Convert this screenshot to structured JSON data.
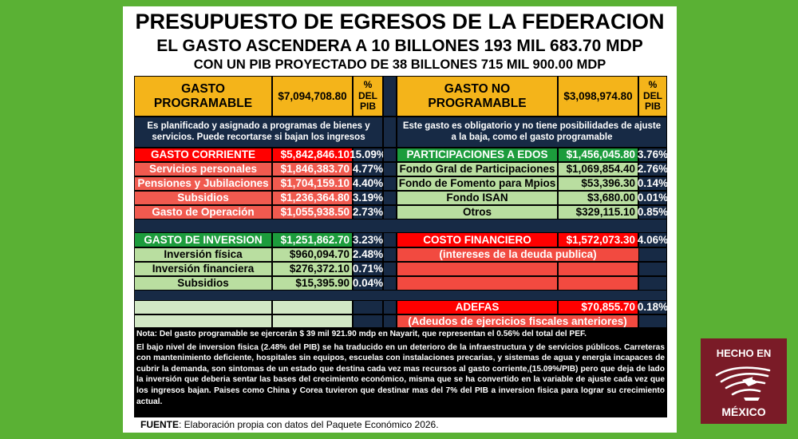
{
  "header": {
    "title": "PRESUPUESTO DE EGRESOS DE LA FEDERACION",
    "subtitle1": "EL GASTO ASCENDERA A 10 BILLONES 193 MIL 683.70 MDP",
    "subtitle2": "CON UN PIB PROYECTADO DE 38 BILLONES 715 MIL 900.00 MDP"
  },
  "left": {
    "header": {
      "label": "GASTO PROGRAMABLE",
      "amount": "$7,094,708.80",
      "pct": "% DEL PIB"
    },
    "description": "Es planificado y asignado a programas de bienes y servicios. Puede recortarse si bajan los ingresos",
    "corriente": {
      "label": "GASTO CORRIENTE",
      "amount": "$5,842,846.10",
      "pct": "15.09%"
    },
    "corriente_items": [
      {
        "label": "Servicios personales",
        "amount": "$1,846,383.70",
        "pct": "4.77%"
      },
      {
        "label": "Pensiones y Jubilaciones",
        "amount": "$1,704,159.10",
        "pct": "4.40%"
      },
      {
        "label": "Subsidios",
        "amount": "$1,236,364.80",
        "pct": "3.19%"
      },
      {
        "label": "Gasto de Operación",
        "amount": "$1,055,938.50",
        "pct": "2.73%"
      }
    ],
    "inversion": {
      "label": "GASTO DE INVERSION",
      "amount": "$1,251,862.70",
      "pct": "3.23%"
    },
    "inversion_items": [
      {
        "label": "Inversión física",
        "amount": "$960,094.70",
        "pct": "2.48%"
      },
      {
        "label": "Inversión financiera",
        "amount": "$276,372.10",
        "pct": "0.71%"
      },
      {
        "label": "Subsidios",
        "amount": "$15,395.90",
        "pct": "0.04%"
      }
    ]
  },
  "right": {
    "header": {
      "label": "GASTO NO PROGRAMABLE",
      "amount": "$3,098,974.80",
      "pct": "% DEL PIB"
    },
    "description": "Este gasto es obligatorio y no tiene posibilidades de ajuste a la baja, como el gasto programable",
    "participaciones": {
      "label": "PARTICIPACIONES A EDOS",
      "amount": "$1,456,045.80",
      "pct": "3.76%"
    },
    "participaciones_items": [
      {
        "label": "Fondo Gral de Participaciones",
        "amount": "$1,069,854.40",
        "pct": "2.76%"
      },
      {
        "label": "Fondo de Fomento para Mpios",
        "amount": "$53,396.30",
        "pct": "0.14%"
      },
      {
        "label": "Fondo ISAN",
        "amount": "$3,680.00",
        "pct": "0.01%"
      },
      {
        "label": "Otros",
        "amount": "$329,115.10",
        "pct": "0.85%"
      }
    ],
    "costo": {
      "label": "COSTO FINANCIERO",
      "amount": "$1,572,073.30",
      "pct": "4.06%"
    },
    "costo_note": "(intereses de la deuda publica)",
    "adefas": {
      "label": "ADEFAS",
      "amount": "$70,855.70",
      "pct": "0.18%"
    },
    "adefas_note": "(Adeudos de ejercicios fiscales anteriores)"
  },
  "notes": {
    "note1": "Nota: Del gasto programable se ejercerán $ 39 mil 921.90 mdp en Nayarit, que representan el 0.56% del total del PEF.",
    "note2": "El bajo nivel de inversion fisica (2.48% del PIB) se ha traducido en un deterioro de la infraestructura y de servicios públicos. Carreteras con mantenimiento deficiente, hospitales sin equipos, escuelas con instalaciones precarias, y sistemas de agua y energia incapaces de cubrir la demanda, son sintomas de un estado que destina cada vez mas recursos al gasto corriente,(15.09%/PIB) pero que deja de lado la inversión que deberia sentar las bases del crecimiento económico, misma que se ha convertido en la variable de ajuste cada vez que los ingresos bajan. Paises como China y Corea tuvieron que destinar mas del 7% del PIB a inversion fisica para lograr su crecimiento actual."
  },
  "fuente": {
    "label": "FUENTE",
    "text": ": Elaboración propia con datos del Paquete Económico 2026."
  },
  "logo": {
    "line1": "HECHO EN",
    "line2": "MÉXICO",
    "icon": "eagle-emblem-icon"
  }
}
